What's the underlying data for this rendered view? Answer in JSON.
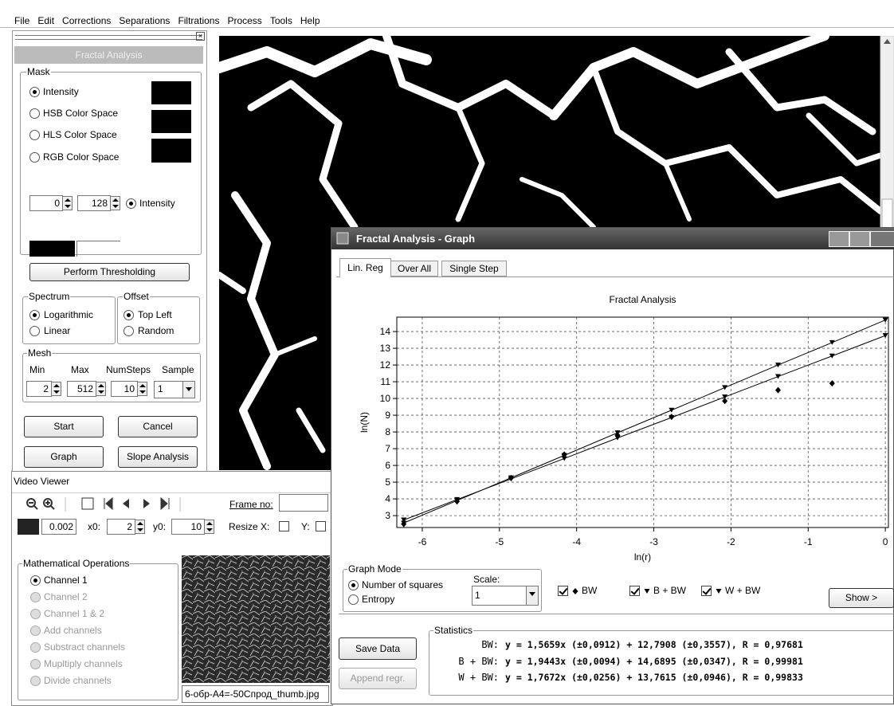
{
  "menu": [
    "File",
    "Edit",
    "Corrections",
    "Separations",
    "Filtrations",
    "Process",
    "Tools",
    "Help"
  ],
  "fractal_panel": {
    "title": "Fractal Analysis",
    "mask_label": "Mask",
    "mask_options": [
      "Intensity",
      "HSB Color Space",
      "HLS Color Space",
      "RGB Color Space"
    ],
    "threshold_low": "0",
    "threshold_high": "128",
    "threshold_mode": "Intensity",
    "perform_button": "Perform Thresholding",
    "spectrum_label": "Spectrum",
    "spectrum_options": [
      "Logarithmic",
      "Linear"
    ],
    "offset_label": "Offset",
    "offset_options": [
      "Top Left",
      "Random"
    ],
    "mesh_label": "Mesh",
    "mesh_headers": [
      "Min",
      "Max",
      "NumSteps",
      "Sample"
    ],
    "mesh_values": [
      "2",
      "512",
      "10",
      "1"
    ],
    "buttons": [
      "Start",
      "Cancel",
      "Graph",
      "Slope Analysis"
    ]
  },
  "video_viewer": {
    "title": "Video Viewer",
    "frame_label": "Frame no:",
    "value": "0.002",
    "x0_label": "x0:",
    "x0": "2",
    "y0_label": "y0:",
    "y0": "10",
    "resize_x": "Resize X:",
    "resize_y": "Y:",
    "math_label": "Mathematical Operations",
    "operations": [
      "Channel 1",
      "Channel 2",
      "Channel 1 & 2",
      "Add channels",
      "Substract channels",
      "Mupltiply channels",
      "Divide channels"
    ],
    "filename": "6-обр-А4=-50Спрод_thumb.jpg"
  },
  "graph_window": {
    "title": "Fractal Analysis - Graph",
    "tabs": [
      "Lin. Reg",
      "Over All",
      "Single Step"
    ],
    "graph_mode_label": "Graph Mode",
    "graph_modes": [
      "Number of squares",
      "Entropy"
    ],
    "scale_label": "Scale:",
    "scale_value": "1",
    "show_button": "Show >",
    "save_button": "Save Data",
    "append_button": "Append regr.",
    "statistics_label": "Statistics",
    "statistics": [
      {
        "name": "BW:",
        "equation": "y = 1,5659x (±0,0912) + 12,7908 (±0,3557), R = 0,97681"
      },
      {
        "name": "B + BW:",
        "equation": "y = 1,9443x (±0,0094) + 14,6895 (±0,0347), R = 0,99981"
      },
      {
        "name": "W + BW:",
        "equation": "y = 1,7672x (±0,0256) + 13,7615 (±0,0946), R = 0,99833"
      }
    ]
  },
  "chart_data": {
    "type": "scatter",
    "title": "Fractal Analysis",
    "x_label": "ln(r)",
    "y_label": "ln(N)",
    "x": [
      -6.24,
      -5.55,
      -4.85,
      -4.16,
      -3.47,
      -2.77,
      -2.08,
      -1.39,
      -0.69,
      0
    ],
    "series": [
      {
        "name": "BW",
        "color": "#000000",
        "marker": "diamond",
        "line": false,
        "values": [
          2.5,
          3.85,
          5.25,
          6.65,
          7.8,
          8.9,
          9.85,
          10.5,
          10.9,
          null
        ]
      },
      {
        "name": "B + BW",
        "color": "#000000",
        "marker": "triangle-down",
        "line": true,
        "values": [
          2.56,
          3.9,
          5.26,
          6.6,
          7.95,
          9.3,
          10.65,
          12.0,
          13.34,
          14.69
        ]
      },
      {
        "name": "W + BW",
        "color": "#000000",
        "marker": "triangle-down",
        "line": true,
        "values": [
          2.74,
          3.96,
          5.19,
          6.41,
          7.64,
          8.86,
          10.09,
          11.31,
          12.54,
          13.76
        ]
      }
    ],
    "xlim": [
      -6.33,
      0.04
    ],
    "ylim": [
      2.29,
      14.86
    ],
    "xticks": [
      -6,
      -5,
      -4,
      -3,
      -2,
      -1,
      0
    ],
    "yticks": [
      3,
      4,
      5,
      6,
      7,
      8,
      9,
      10,
      11,
      12,
      13,
      14
    ],
    "grid": true
  }
}
